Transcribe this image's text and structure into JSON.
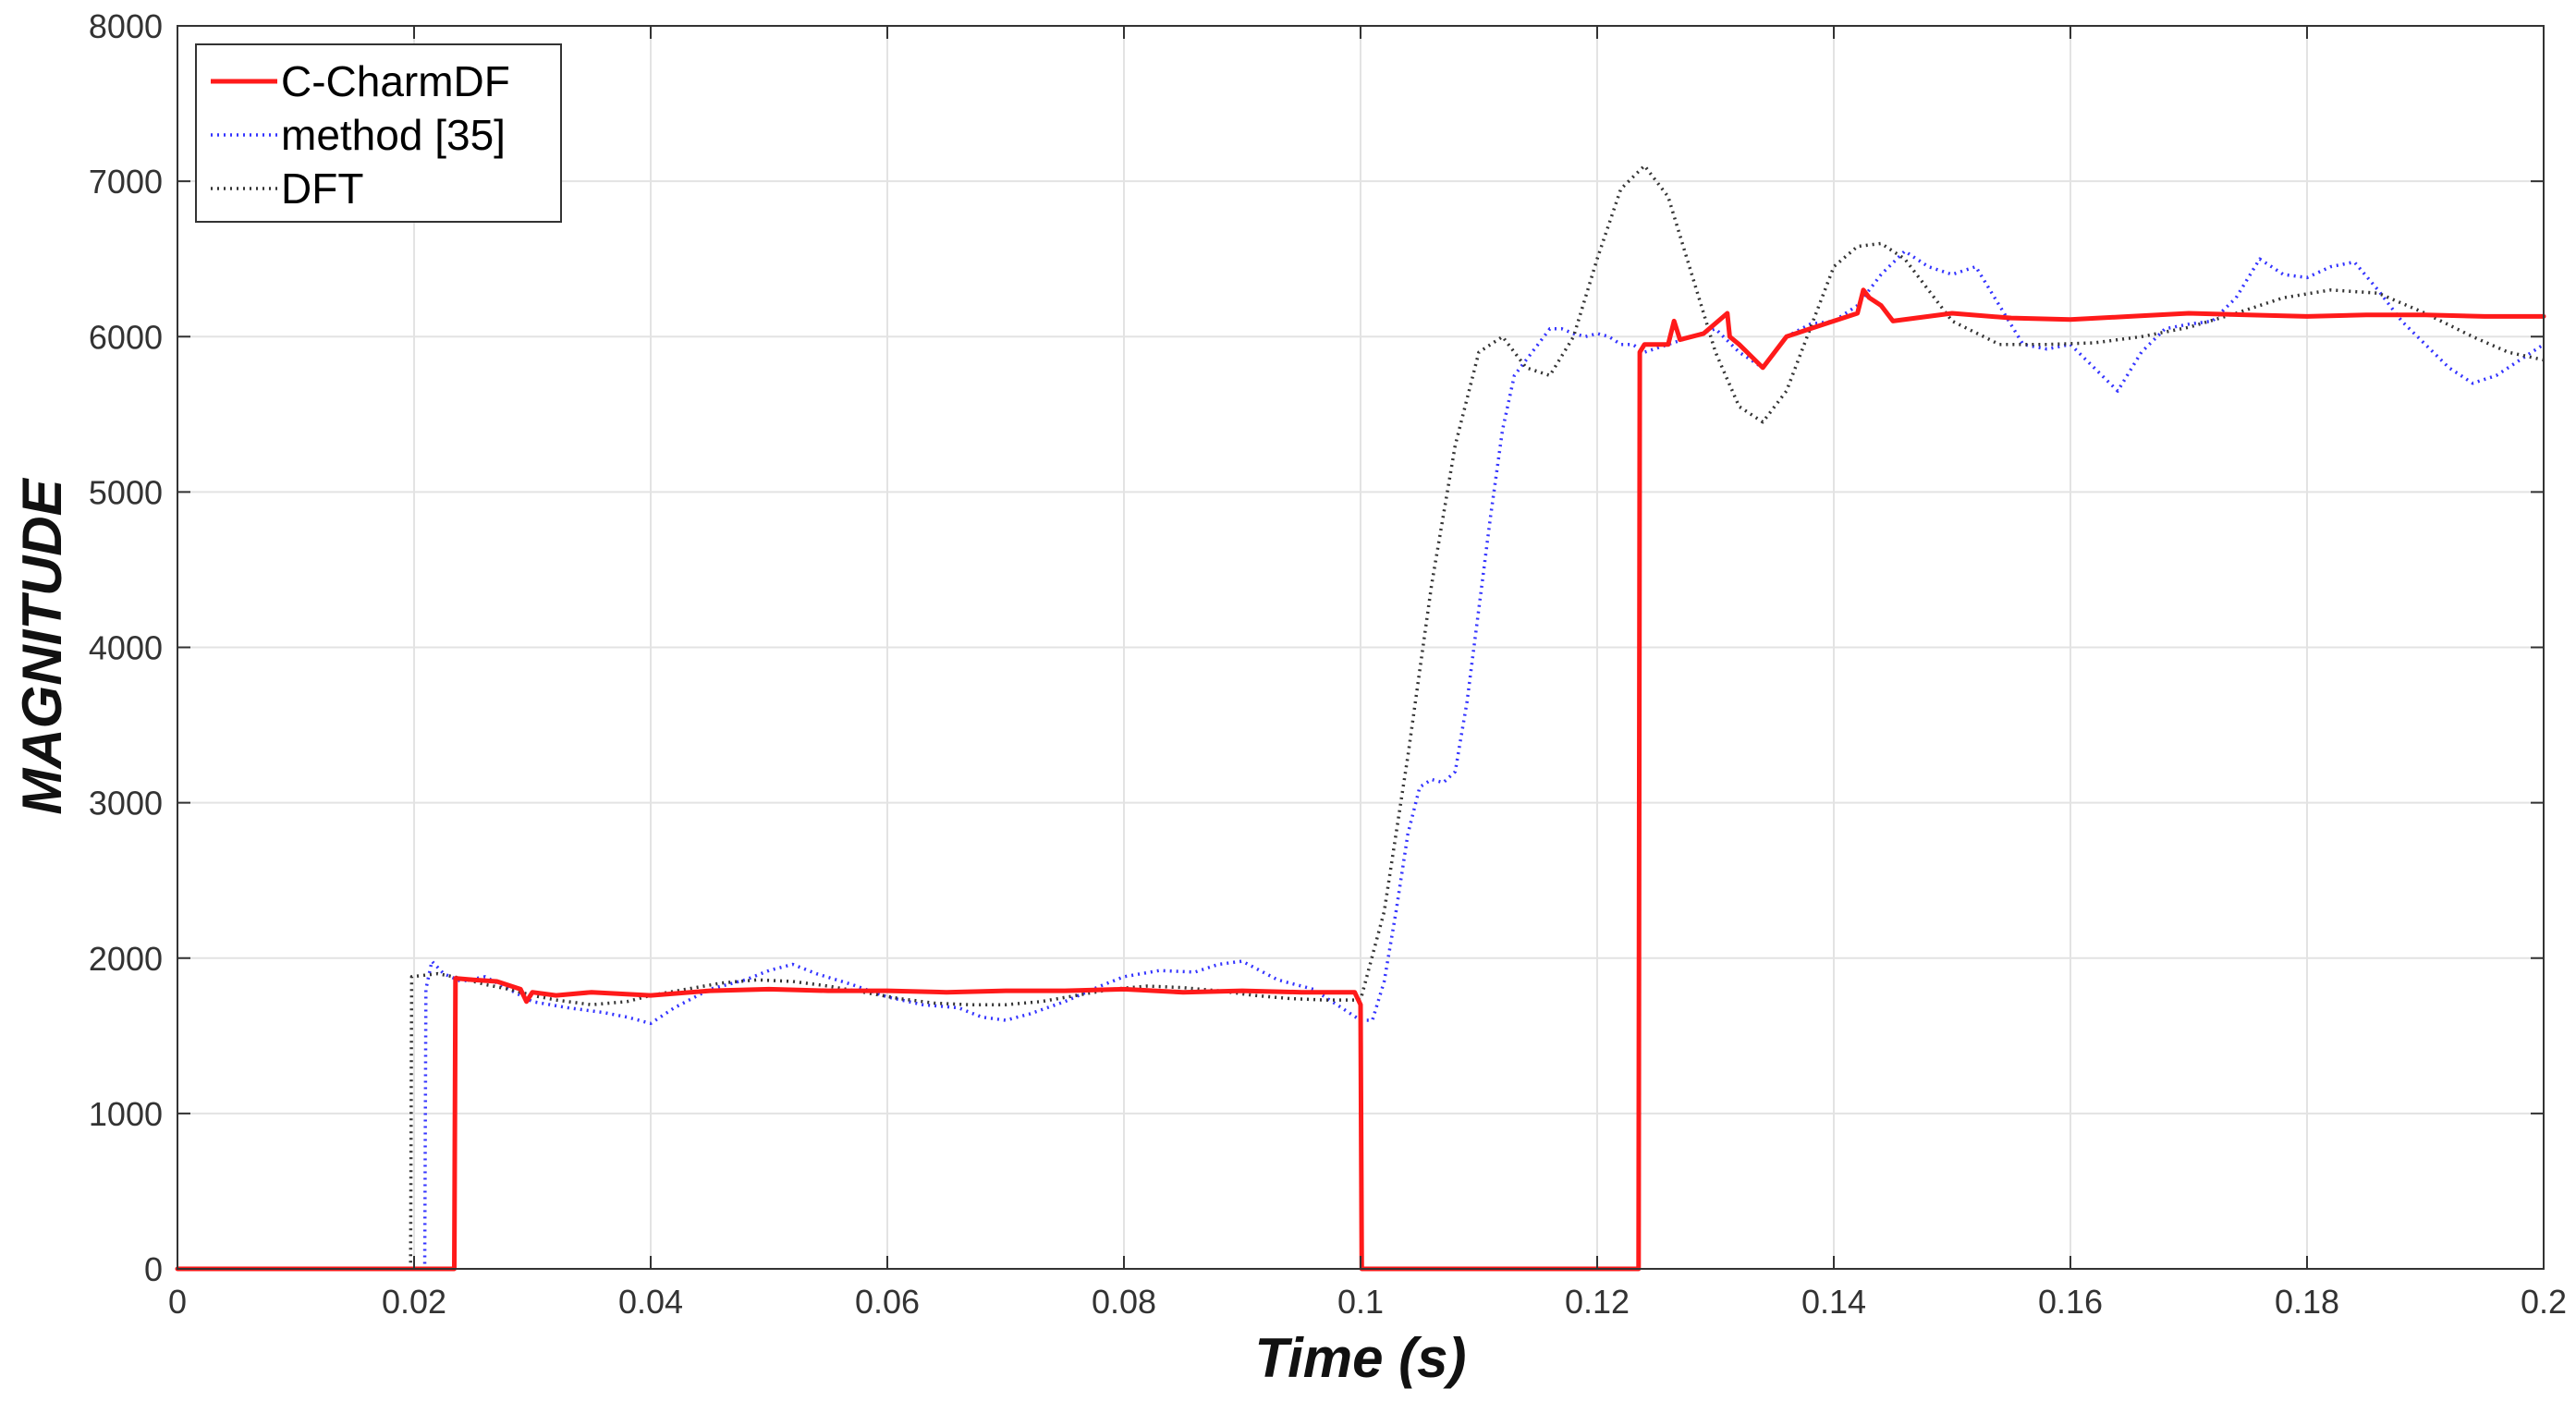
{
  "chart_data": {
    "type": "line",
    "title": "",
    "xlabel": "Time (s)",
    "ylabel": "MAGNITUDE",
    "xlim": [
      0,
      0.2
    ],
    "ylim": [
      0,
      8000
    ],
    "grid": true,
    "legend_position": "top-left",
    "x_ticks": [
      0,
      0.02,
      0.04,
      0.06,
      0.08,
      0.1,
      0.12,
      0.14,
      0.16,
      0.18,
      0.2
    ],
    "x_tick_labels": [
      "0",
      "0.02",
      "0.04",
      "0.06",
      "0.08",
      "0.1",
      "0.12",
      "0.14",
      "0.16",
      "0.18",
      "0.2"
    ],
    "y_ticks": [
      0,
      1000,
      2000,
      3000,
      4000,
      5000,
      6000,
      7000,
      8000
    ],
    "y_tick_labels": [
      "0",
      "1000",
      "2000",
      "3000",
      "4000",
      "5000",
      "6000",
      "7000",
      "8000"
    ],
    "series": [
      {
        "name": "C-CharmDF",
        "color": "#ff1a1a",
        "style": "solid",
        "x": [
          0,
          0.0234,
          0.0235,
          0.025,
          0.027,
          0.029,
          0.0295,
          0.03,
          0.032,
          0.035,
          0.04,
          0.045,
          0.05,
          0.055,
          0.06,
          0.065,
          0.07,
          0.075,
          0.08,
          0.085,
          0.09,
          0.095,
          0.0995,
          0.1,
          0.1001,
          0.1235,
          0.1236,
          0.124,
          0.126,
          0.1265,
          0.127,
          0.129,
          0.131,
          0.1312,
          0.132,
          0.134,
          0.136,
          0.138,
          0.14,
          0.142,
          0.1425,
          0.143,
          0.144,
          0.145,
          0.15,
          0.155,
          0.16,
          0.165,
          0.17,
          0.175,
          0.18,
          0.185,
          0.19,
          0.195,
          0.2
        ],
        "y": [
          0,
          0,
          1870,
          1860,
          1850,
          1800,
          1720,
          1780,
          1760,
          1780,
          1760,
          1790,
          1800,
          1790,
          1790,
          1780,
          1790,
          1790,
          1800,
          1780,
          1790,
          1780,
          1780,
          1700,
          0,
          0,
          5900,
          5950,
          5950,
          6100,
          5980,
          6020,
          6150,
          6000,
          5950,
          5800,
          6000,
          6050,
          6100,
          6150,
          6300,
          6250,
          6200,
          6100,
          6150,
          6120,
          6110,
          6130,
          6150,
          6140,
          6130,
          6140,
          6140,
          6130,
          6130
        ]
      },
      {
        "name": "method [35]",
        "color": "#3333ff",
        "style": "dotted",
        "x": [
          0,
          0.0209,
          0.021,
          0.0215,
          0.0225,
          0.024,
          0.026,
          0.028,
          0.03,
          0.033,
          0.036,
          0.038,
          0.04,
          0.042,
          0.045,
          0.048,
          0.05,
          0.052,
          0.054,
          0.057,
          0.06,
          0.063,
          0.066,
          0.068,
          0.07,
          0.072,
          0.075,
          0.078,
          0.08,
          0.083,
          0.086,
          0.088,
          0.09,
          0.093,
          0.096,
          0.098,
          0.1,
          0.101,
          0.102,
          0.103,
          0.104,
          0.105,
          0.106,
          0.107,
          0.108,
          0.109,
          0.11,
          0.111,
          0.112,
          0.113,
          0.114,
          0.115,
          0.116,
          0.117,
          0.118,
          0.119,
          0.12,
          0.121,
          0.122,
          0.123,
          0.124,
          0.126,
          0.128,
          0.13,
          0.132,
          0.134,
          0.136,
          0.138,
          0.14,
          0.142,
          0.144,
          0.146,
          0.148,
          0.15,
          0.152,
          0.154,
          0.156,
          0.158,
          0.16,
          0.162,
          0.164,
          0.166,
          0.168,
          0.17,
          0.172,
          0.174,
          0.176,
          0.178,
          0.18,
          0.182,
          0.184,
          0.186,
          0.188,
          0.19,
          0.192,
          0.194,
          0.196,
          0.198,
          0.2
        ],
        "y": [
          0,
          0,
          1800,
          1980,
          1900,
          1850,
          1880,
          1800,
          1720,
          1680,
          1650,
          1620,
          1580,
          1680,
          1800,
          1860,
          1920,
          1960,
          1900,
          1830,
          1750,
          1700,
          1680,
          1620,
          1600,
          1640,
          1720,
          1820,
          1880,
          1920,
          1910,
          1960,
          1980,
          1860,
          1800,
          1700,
          1600,
          1600,
          1850,
          2300,
          2800,
          3100,
          3150,
          3130,
          3200,
          3650,
          4250,
          4850,
          5400,
          5750,
          5850,
          5950,
          6050,
          6050,
          6020,
          6000,
          6020,
          6000,
          5950,
          5950,
          5900,
          5950,
          6000,
          6050,
          5900,
          5800,
          6000,
          6080,
          6100,
          6200,
          6400,
          6550,
          6450,
          6400,
          6450,
          6200,
          5950,
          5920,
          5950,
          5800,
          5650,
          5900,
          6050,
          6080,
          6100,
          6250,
          6500,
          6400,
          6380,
          6450,
          6480,
          6300,
          6100,
          5950,
          5800,
          5700,
          5750,
          5850,
          5950
        ]
      },
      {
        "name": "DFT",
        "color": "#333333",
        "style": "dotted",
        "x": [
          0,
          0.0197,
          0.0198,
          0.022,
          0.024,
          0.026,
          0.028,
          0.03,
          0.032,
          0.035,
          0.038,
          0.04,
          0.043,
          0.046,
          0.049,
          0.052,
          0.055,
          0.058,
          0.061,
          0.064,
          0.067,
          0.07,
          0.073,
          0.076,
          0.079,
          0.082,
          0.085,
          0.088,
          0.091,
          0.094,
          0.097,
          0.1,
          0.102,
          0.104,
          0.106,
          0.108,
          0.11,
          0.112,
          0.114,
          0.116,
          0.118,
          0.12,
          0.122,
          0.124,
          0.126,
          0.128,
          0.13,
          0.132,
          0.134,
          0.136,
          0.138,
          0.14,
          0.142,
          0.144,
          0.146,
          0.148,
          0.15,
          0.154,
          0.158,
          0.162,
          0.166,
          0.17,
          0.174,
          0.178,
          0.182,
          0.186,
          0.19,
          0.194,
          0.197,
          0.2
        ],
        "y": [
          0,
          0,
          1880,
          1900,
          1870,
          1830,
          1800,
          1760,
          1730,
          1700,
          1720,
          1760,
          1800,
          1840,
          1860,
          1850,
          1820,
          1780,
          1740,
          1710,
          1700,
          1700,
          1720,
          1760,
          1800,
          1820,
          1810,
          1790,
          1760,
          1740,
          1730,
          1730,
          2300,
          3300,
          4400,
          5300,
          5900,
          6000,
          5800,
          5750,
          6000,
          6500,
          6950,
          7100,
          6900,
          6400,
          5900,
          5550,
          5450,
          5650,
          6050,
          6450,
          6580,
          6600,
          6500,
          6300,
          6100,
          5950,
          5950,
          5960,
          6000,
          6060,
          6150,
          6250,
          6300,
          6280,
          6150,
          6000,
          5900,
          5850
        ]
      }
    ]
  }
}
